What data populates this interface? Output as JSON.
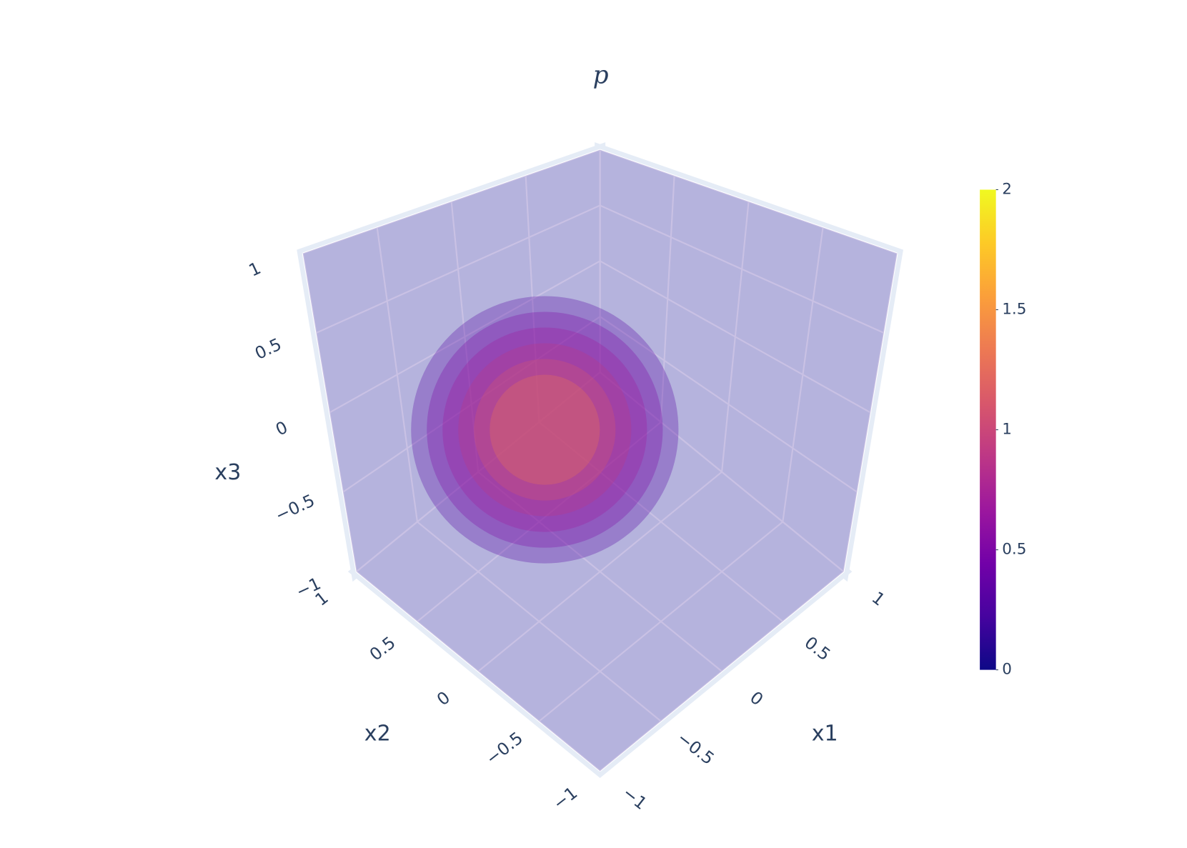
{
  "chart_data": {
    "type": "volume",
    "title": "p",
    "x1label": "x1",
    "x2label": "x2",
    "x3label": "x3",
    "x1lim": [
      -1,
      1
    ],
    "x2lim": [
      -1,
      1
    ],
    "x3lim": [
      -1,
      1
    ],
    "x1ticks": [
      {
        "value": -1,
        "label": "−1"
      },
      {
        "value": -0.5,
        "label": "−0.5"
      },
      0,
      0.5,
      1
    ],
    "x2ticks": [
      {
        "value": -1,
        "label": "−1"
      },
      {
        "value": -0.5,
        "label": "−0.5"
      },
      0,
      0.5,
      1
    ],
    "x3ticks": [
      {
        "value": -1,
        "label": "−1"
      },
      {
        "value": -0.5,
        "label": "−0.5"
      },
      0,
      0.5,
      1
    ],
    "levels": [
      0.1,
      0.3,
      0.5,
      0.7,
      0.9,
      1.1,
      1.3
    ],
    "clim": [
      0,
      2
    ],
    "cticks": [
      0,
      0.5,
      1,
      1.5,
      2
    ],
    "colorscale": [
      "#0d0887",
      "#46039f",
      "#7201a8",
      "#9c179e",
      "#bd3786",
      "#d8576b",
      "#ed7953",
      "#fb9f3a",
      "#fdca26",
      "#f0f921"
    ],
    "grid": true
  }
}
